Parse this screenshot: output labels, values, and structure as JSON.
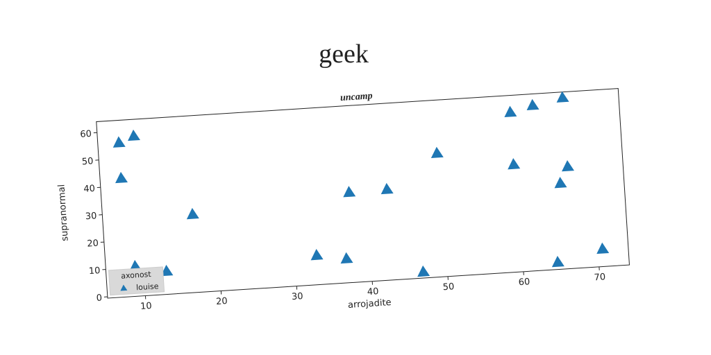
{
  "chart_data": {
    "type": "scatter",
    "title": "geek",
    "subtitle": "uncamp",
    "xlabel": "arrojadite",
    "ylabel": "supranormal",
    "legend_title": "axonost",
    "legend": "lower left",
    "series": [
      {
        "name": "louise",
        "color": "#1f77b4",
        "marker": "triangle",
        "x": [
          7.8,
          9.8,
          7.8,
          8.9,
          13.0,
          16.9,
          32.9,
          36.8,
          37.7,
          42.7,
          46.8,
          49.6,
          59.6,
          62.6,
          66.6,
          59.6,
          66.7,
          65.6,
          64.6,
          70.6
        ],
        "values": [
          55.9,
          58.0,
          42.9,
          10.5,
          8.0,
          28.1,
          10.3,
          8.4,
          32.5,
          32.7,
          1.8,
          44.7,
          57.9,
          59.9,
          62.0,
          38.8,
          36.8,
          30.9,
          2.2,
          6.0
        ]
      }
    ],
    "xlim": [
      5,
      74
    ],
    "ylim": [
      -0.5,
      64
    ],
    "xticks": [
      10,
      20,
      30,
      40,
      50,
      60,
      70
    ],
    "yticks": [
      0,
      10,
      20,
      30,
      40,
      50,
      60
    ]
  }
}
